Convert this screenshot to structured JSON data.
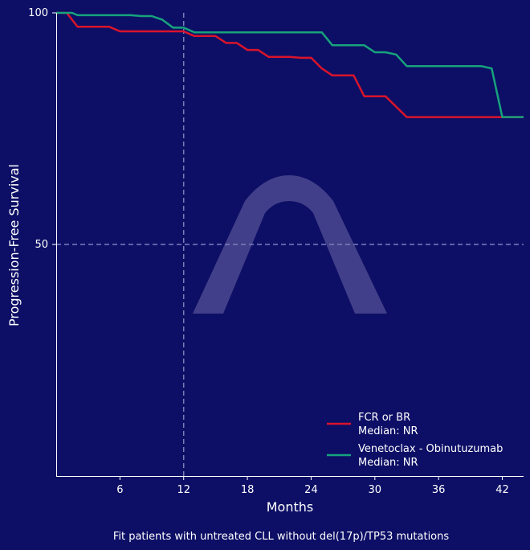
{
  "chart_data": {
    "type": "line",
    "title": "",
    "xlabel": "Months",
    "ylabel": "Progression-Free Survival",
    "caption": "Fit patients with untreated CLL without del(17p)/TP53 mutations",
    "xlim": [
      0,
      44
    ],
    "ylim": [
      0,
      100
    ],
    "x_ticks": [
      6,
      12,
      18,
      24,
      30,
      36,
      42
    ],
    "y_ticks": [
      50,
      100
    ],
    "reference_lines": {
      "x": 12,
      "y": 50
    },
    "grid": false,
    "legend_position": "bottom-right",
    "series": [
      {
        "name": "FCR or BR",
        "sublabel": "Median: NR",
        "color": "#d9142b",
        "points": [
          [
            0,
            100
          ],
          [
            1,
            100
          ],
          [
            2,
            97
          ],
          [
            5,
            97
          ],
          [
            6,
            96
          ],
          [
            12,
            96
          ],
          [
            13,
            95
          ],
          [
            15,
            95
          ],
          [
            16,
            93.5
          ],
          [
            17,
            93.5
          ],
          [
            18,
            92
          ],
          [
            19,
            92
          ],
          [
            20,
            90.5
          ],
          [
            22,
            90.5
          ],
          [
            23,
            90.3
          ],
          [
            24,
            90.3
          ],
          [
            25,
            88
          ],
          [
            26,
            86.5
          ],
          [
            28,
            86.5
          ],
          [
            29,
            82
          ],
          [
            31,
            82
          ],
          [
            33,
            77.5
          ],
          [
            44,
            77.5
          ]
        ]
      },
      {
        "name": "Venetoclax - Obinutuzumab",
        "sublabel": "Median: NR",
        "color": "#17a37c",
        "points": [
          [
            0,
            100
          ],
          [
            1.5,
            100
          ],
          [
            2,
            99.5
          ],
          [
            7,
            99.5
          ],
          [
            8,
            99.3
          ],
          [
            9,
            99.3
          ],
          [
            10,
            98.5
          ],
          [
            11,
            96.8
          ],
          [
            12,
            96.8
          ],
          [
            13,
            95.8
          ],
          [
            25,
            95.8
          ],
          [
            26,
            93
          ],
          [
            29,
            93
          ],
          [
            30,
            91.5
          ],
          [
            31,
            91.5
          ],
          [
            32,
            91
          ],
          [
            33,
            88.5
          ],
          [
            40,
            88.5
          ],
          [
            41,
            88
          ],
          [
            42,
            77.5
          ],
          [
            44,
            77.5
          ]
        ]
      }
    ]
  },
  "colors": {
    "background": "#0d0f66",
    "reference_line": "#7b7fb8",
    "watermark": "#6f68a8"
  },
  "watermark_icon": "caret-up-logo"
}
